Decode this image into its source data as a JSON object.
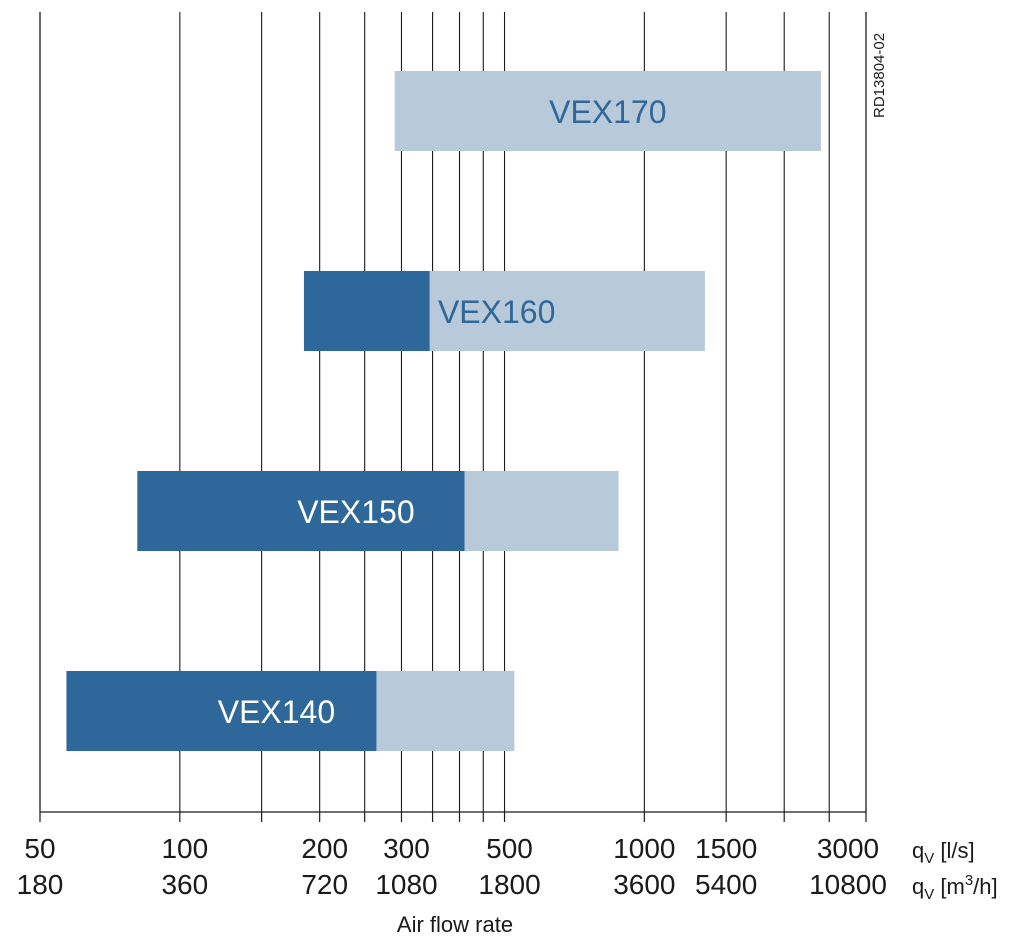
{
  "chart_data": {
    "type": "bar",
    "orientation": "horizontal",
    "scale": "log",
    "xlim": [
      50,
      3000
    ],
    "grid": true,
    "xlabel": "Air flow rate",
    "x_ticks_ls": [
      "50",
      "100",
      "200",
      "300",
      "500",
      "1000",
      "1500",
      "3000"
    ],
    "x_ticks_m3h": [
      "180",
      "360",
      "720",
      "1080",
      "1800",
      "3600",
      "5400",
      "10800"
    ],
    "gridlines_ls": [
      100,
      150,
      200,
      250,
      300,
      350,
      400,
      450,
      500,
      1000,
      1500,
      2000,
      2500
    ],
    "unit_ls": {
      "q": "q",
      "sub": "V",
      "unit": " [l/s]"
    },
    "unit_m3h": {
      "q": "q",
      "sub": "V",
      "unit_pre": " [m",
      "sup": "3",
      "unit_post": "/h]"
    },
    "doc_code": "RD13804-02",
    "colors": {
      "dark": "#2e6799",
      "light": "#b8c9d9",
      "label_on_light": "#2e6799",
      "label_on_dark": "#ffffff"
    },
    "series": [
      {
        "name": "VEX170",
        "dark_range": null,
        "light_range": [
          290,
          2400
        ],
        "label_on": "light"
      },
      {
        "name": "VEX160",
        "dark_range": [
          185,
          345
        ],
        "light_range": [
          345,
          1350
        ],
        "label_on": "light"
      },
      {
        "name": "VEX150",
        "dark_range": [
          81,
          410
        ],
        "light_range": [
          410,
          880
        ],
        "label_on": "dark"
      },
      {
        "name": "VEX140",
        "dark_range": [
          57,
          265
        ],
        "light_range": [
          265,
          525
        ],
        "label_on": "dark"
      }
    ]
  }
}
